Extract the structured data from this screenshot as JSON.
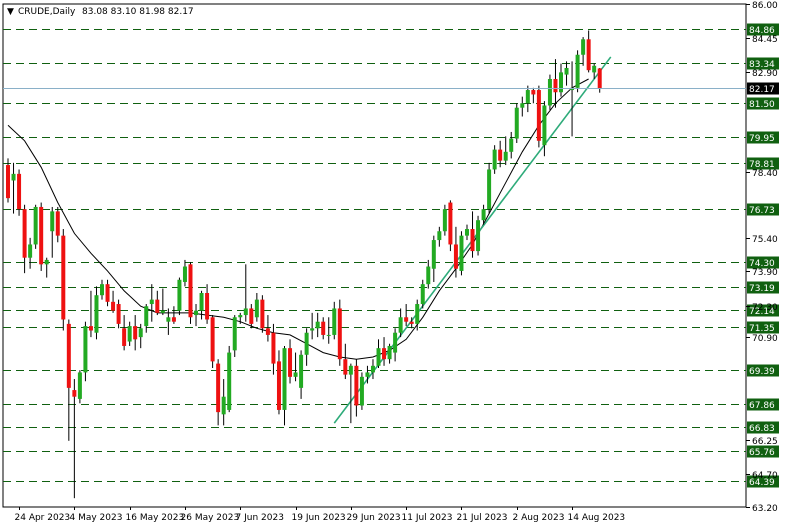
{
  "header": {
    "symbol": "CRUDE,Daily",
    "ohlc": "83.08 83.10 81.98 82.17"
  },
  "chart_data": {
    "type": "candlestick",
    "colors": {
      "bull": "#22aa22",
      "bear": "#ee1111",
      "levels": "#106010",
      "trendline": "#2eab7a",
      "moving_average": "#000000",
      "current_price": "#8ab0c8"
    },
    "y_range": [
      63.2,
      86.0
    ],
    "y_ticks": [
      {
        "v": 86.0,
        "label": "86.00"
      },
      {
        "v": 84.45,
        "label": "84.45"
      },
      {
        "v": 82.9,
        "label": "82.90"
      },
      {
        "v": 78.4,
        "label": "78.40"
      },
      {
        "v": 75.4,
        "label": "75.40"
      },
      {
        "v": 73.9,
        "label": "73.90"
      },
      {
        "v": 72.3,
        "label": "72.30"
      },
      {
        "v": 70.9,
        "label": "70.90"
      },
      {
        "v": 66.25,
        "label": "66.25"
      },
      {
        "v": 64.7,
        "label": "64.70"
      },
      {
        "v": 63.2,
        "label": "63.20"
      }
    ],
    "levels": [
      84.86,
      83.34,
      81.5,
      79.95,
      78.81,
      76.73,
      74.3,
      73.19,
      72.14,
      71.35,
      69.39,
      67.86,
      66.83,
      65.76,
      64.39
    ],
    "level_labels": [
      "84.86",
      "83.34",
      "81.50",
      "79.95",
      "78.81",
      "76.73",
      "74.30",
      "73.19",
      "72.14",
      "71.35",
      "69.39",
      "67.86",
      "66.83",
      "65.76",
      "64.39"
    ],
    "current_price": 82.17,
    "current_price_label": "82.17",
    "x_labels": [
      {
        "i": 2,
        "label": "24 Apr 2023"
      },
      {
        "i": 12,
        "label": "4 May 2023"
      },
      {
        "i": 22,
        "label": "16 May 2023"
      },
      {
        "i": 32,
        "label": "26 May 2023"
      },
      {
        "i": 42,
        "label": "7 Jun 2023"
      },
      {
        "i": 52,
        "label": "19 Jun 2023"
      },
      {
        "i": 62,
        "label": "29 Jun 2023"
      },
      {
        "i": 72,
        "label": "11 Jul 2023"
      },
      {
        "i": 82,
        "label": "21 Jul 2023"
      },
      {
        "i": 92,
        "label": "2 Aug 2023"
      },
      {
        "i": 102,
        "label": "14 Aug 2023"
      }
    ],
    "candles": [
      [
        78.7,
        79.0,
        77.0,
        77.2
      ],
      [
        78.0,
        78.8,
        76.5,
        78.3
      ],
      [
        78.3,
        78.5,
        76.4,
        76.7
      ],
      [
        76.7,
        76.9,
        73.8,
        74.5
      ],
      [
        74.5,
        75.4,
        74.0,
        75.1
      ],
      [
        75.1,
        76.9,
        74.9,
        76.8
      ],
      [
        76.8,
        77.0,
        73.9,
        74.2
      ],
      [
        74.2,
        74.5,
        73.6,
        74.4
      ],
      [
        75.7,
        76.8,
        74.5,
        76.6
      ],
      [
        76.6,
        76.8,
        75.2,
        75.5
      ],
      [
        75.5,
        75.8,
        71.2,
        71.7
      ],
      [
        71.5,
        71.7,
        66.2,
        68.6
      ],
      [
        68.5,
        69.0,
        63.6,
        68.2
      ],
      [
        68.1,
        69.4,
        67.9,
        69.3
      ],
      [
        69.3,
        71.6,
        68.9,
        71.4
      ],
      [
        71.4,
        73.0,
        70.9,
        71.2
      ],
      [
        71.1,
        73.2,
        70.8,
        72.8
      ],
      [
        72.8,
        73.5,
        72.6,
        73.3
      ],
      [
        73.3,
        73.5,
        72.3,
        72.5
      ],
      [
        72.5,
        73.0,
        72.0,
        72.1
      ],
      [
        72.4,
        72.6,
        71.3,
        71.5
      ],
      [
        71.3,
        71.9,
        70.3,
        70.5
      ],
      [
        70.7,
        71.6,
        70.5,
        71.4
      ],
      [
        71.4,
        71.9,
        70.3,
        70.8
      ],
      [
        70.9,
        71.5,
        70.4,
        71.3
      ],
      [
        71.4,
        72.4,
        71.1,
        72.3
      ],
      [
        72.4,
        73.3,
        71.6,
        72.6
      ],
      [
        72.6,
        73.0,
        71.9,
        72.0
      ],
      [
        72.0,
        73.1,
        71.9,
        72.1
      ],
      [
        71.6,
        72.2,
        71.0,
        71.8
      ],
      [
        71.8,
        72.3,
        71.5,
        71.6
      ],
      [
        72.1,
        73.6,
        71.9,
        73.5
      ],
      [
        73.4,
        74.4,
        73.2,
        74.1
      ],
      [
        74.2,
        74.3,
        71.5,
        71.8
      ],
      [
        71.9,
        72.4,
        71.4,
        72.1
      ],
      [
        72.1,
        73.0,
        71.7,
        72.9
      ],
      [
        72.9,
        73.3,
        71.5,
        71.7
      ],
      [
        71.8,
        71.9,
        69.5,
        69.8
      ],
      [
        69.7,
        69.9,
        66.9,
        67.5
      ],
      [
        67.4,
        69.0,
        66.9,
        68.2
      ],
      [
        67.6,
        70.5,
        67.5,
        70.2
      ],
      [
        70.3,
        71.9,
        70.0,
        71.8
      ],
      [
        71.8,
        72.0,
        71.5,
        71.9
      ],
      [
        71.9,
        74.2,
        71.6,
        72.2
      ],
      [
        72.2,
        72.4,
        71.3,
        71.5
      ],
      [
        71.8,
        72.9,
        71.6,
        72.6
      ],
      [
        72.6,
        72.8,
        71.1,
        71.3
      ],
      [
        71.3,
        71.9,
        70.7,
        71.0
      ],
      [
        71.1,
        71.5,
        69.2,
        69.7
      ],
      [
        69.8,
        70.3,
        67.4,
        67.6
      ],
      [
        67.6,
        70.5,
        66.9,
        70.4
      ],
      [
        70.4,
        70.8,
        68.8,
        69.1
      ],
      [
        69.1,
        70.2,
        68.9,
        69.3
      ],
      [
        68.6,
        70.3,
        68.1,
        70.1
      ],
      [
        70.1,
        71.3,
        69.6,
        71.1
      ],
      [
        71.2,
        72.0,
        70.8,
        71.3
      ],
      [
        71.3,
        72.0,
        70.9,
        71.6
      ],
      [
        71.6,
        71.8,
        70.8,
        71.0
      ],
      [
        71.0,
        71.8,
        70.6,
        71.0
      ],
      [
        71.0,
        72.5,
        70.8,
        72.2
      ],
      [
        72.2,
        72.6,
        69.6,
        69.9
      ],
      [
        69.9,
        70.6,
        69.0,
        69.2
      ],
      [
        69.2,
        69.7,
        67.0,
        69.6
      ],
      [
        69.6,
        69.9,
        67.3,
        67.8
      ],
      [
        67.8,
        69.3,
        67.6,
        69.1
      ],
      [
        69.1,
        69.6,
        68.8,
        69.3
      ],
      [
        69.3,
        69.9,
        69.0,
        69.6
      ],
      [
        69.6,
        70.8,
        69.5,
        70.4
      ],
      [
        70.4,
        70.9,
        69.6,
        69.9
      ],
      [
        69.9,
        70.6,
        69.7,
        70.5
      ],
      [
        70.2,
        71.3,
        69.8,
        71.1
      ],
      [
        71.1,
        72.2,
        70.9,
        71.8
      ],
      [
        71.8,
        72.4,
        71.4,
        71.6
      ],
      [
        71.6,
        71.8,
        71.3,
        71.5
      ],
      [
        71.5,
        72.6,
        71.2,
        72.4
      ],
      [
        72.4,
        73.5,
        72.2,
        73.3
      ],
      [
        73.3,
        74.4,
        73.1,
        74.1
      ],
      [
        74.0,
        75.5,
        73.4,
        75.3
      ],
      [
        75.3,
        75.9,
        75.0,
        75.7
      ],
      [
        75.7,
        76.9,
        75.5,
        76.7
      ],
      [
        77.0,
        77.1,
        74.8,
        75.1
      ],
      [
        75.1,
        75.9,
        73.6,
        74.0
      ],
      [
        73.9,
        75.7,
        73.7,
        75.5
      ],
      [
        75.5,
        76.0,
        75.3,
        75.8
      ],
      [
        75.8,
        76.6,
        74.5,
        74.8
      ],
      [
        74.8,
        76.4,
        74.6,
        76.2
      ],
      [
        76.2,
        76.9,
        76.0,
        76.7
      ],
      [
        76.7,
        78.8,
        76.5,
        78.5
      ],
      [
        78.5,
        79.6,
        78.3,
        79.4
      ],
      [
        79.4,
        79.8,
        78.6,
        78.9
      ],
      [
        78.9,
        80.0,
        78.7,
        79.3
      ],
      [
        79.3,
        80.2,
        79.0,
        79.9
      ],
      [
        79.9,
        81.5,
        79.7,
        81.3
      ],
      [
        81.3,
        81.8,
        80.9,
        81.5
      ],
      [
        81.5,
        82.3,
        81.1,
        82.1
      ],
      [
        82.1,
        82.2,
        81.5,
        81.9
      ],
      [
        82.1,
        82.3,
        79.5,
        79.8
      ],
      [
        79.6,
        81.6,
        79.1,
        81.4
      ],
      [
        81.4,
        82.8,
        81.2,
        82.6
      ],
      [
        82.6,
        83.5,
        81.3,
        82.0
      ],
      [
        82.0,
        83.3,
        81.8,
        82.9
      ],
      [
        82.8,
        83.4,
        82.3,
        83.1
      ],
      [
        82.1,
        83.4,
        80.0,
        82.2
      ],
      [
        82.2,
        83.9,
        82.0,
        83.7
      ],
      [
        83.7,
        84.5,
        83.2,
        84.4
      ],
      [
        84.4,
        84.8,
        82.9,
        83.0
      ],
      [
        82.9,
        83.3,
        82.6,
        83.2
      ],
      [
        83.08,
        83.1,
        81.98,
        82.17
      ]
    ],
    "ma_points": [
      [
        0,
        80.5
      ],
      [
        3,
        79.8
      ],
      [
        6,
        78.6
      ],
      [
        9,
        77.0
      ],
      [
        12,
        75.6
      ],
      [
        15,
        74.7
      ],
      [
        18,
        73.9
      ],
      [
        21,
        73.0
      ],
      [
        24,
        72.3
      ],
      [
        27,
        72.0
      ],
      [
        30,
        72.0
      ],
      [
        33,
        72.0
      ],
      [
        36,
        71.9
      ],
      [
        39,
        71.8
      ],
      [
        42,
        71.6
      ],
      [
        45,
        71.3
      ],
      [
        48,
        71.1
      ],
      [
        51,
        71.0
      ],
      [
        54,
        70.6
      ],
      [
        57,
        70.2
      ],
      [
        60,
        70.0
      ],
      [
        63,
        69.9
      ],
      [
        66,
        70.0
      ],
      [
        69,
        70.3
      ],
      [
        72,
        70.8
      ],
      [
        75,
        71.8
      ],
      [
        78,
        73.0
      ],
      [
        81,
        74.0
      ],
      [
        84,
        75.1
      ],
      [
        87,
        76.5
      ],
      [
        90,
        77.9
      ],
      [
        93,
        79.3
      ],
      [
        96,
        80.5
      ],
      [
        99,
        81.5
      ],
      [
        102,
        82.2
      ],
      [
        105,
        82.6
      ]
    ],
    "trendline": [
      [
        59,
        67.0
      ],
      [
        109,
        83.6
      ]
    ]
  }
}
